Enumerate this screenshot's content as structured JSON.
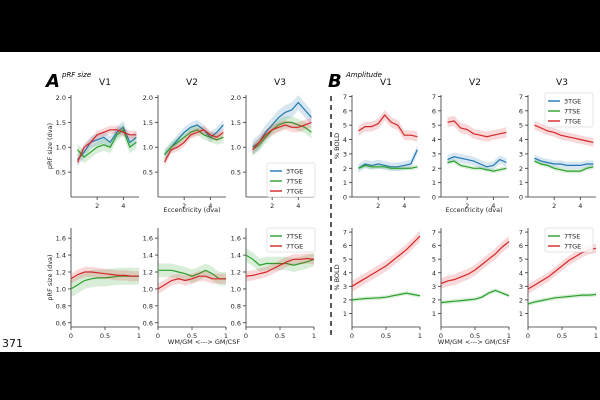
{
  "page": {
    "line_number": "371",
    "panel_a_letter": "A",
    "panel_a_subtitle": "pRF size",
    "panel_b_letter": "B",
    "panel_b_subtitle": "Amplitude"
  },
  "colors": {
    "3TGE": "#1f77b4",
    "7TSE": "#2ca02c",
    "7TGE": "#d62728"
  },
  "chart_data": [
    {
      "id": "A-top",
      "type": "line",
      "title": "pRF size",
      "xlabel": "Eccentricity (dva)",
      "ylabel": "pRF size (dva)",
      "xlim": [
        0,
        5.2
      ],
      "ylim": [
        0,
        2.05
      ],
      "xticks": [
        2,
        4
      ],
      "yticks": [
        0.5,
        1.0,
        1.5,
        2.0
      ],
      "ytick_labels": [
        "0.5",
        "1.0",
        "1.5",
        "2.0"
      ],
      "subplots": [
        {
          "title": "V1",
          "x": [
            0.5,
            1,
            1.5,
            2,
            2.5,
            3,
            3.5,
            4,
            4.5,
            5
          ],
          "series": [
            {
              "name": "3TGE",
              "values": [
                0.75,
                0.9,
                1.1,
                1.15,
                1.2,
                1.1,
                1.3,
                1.4,
                1.1,
                1.2
              ],
              "err": 0.12
            },
            {
              "name": "7TSE",
              "values": [
                0.95,
                0.8,
                0.9,
                1.0,
                1.05,
                1.0,
                1.25,
                1.35,
                1.0,
                1.1
              ],
              "err": 0.12
            },
            {
              "name": "7TGE",
              "values": [
                0.7,
                1.0,
                1.1,
                1.25,
                1.3,
                1.35,
                1.35,
                1.3,
                1.25,
                1.25
              ],
              "err": 0.08
            }
          ]
        },
        {
          "title": "V2",
          "x": [
            0.5,
            1,
            1.5,
            2,
            2.5,
            3,
            3.5,
            4,
            4.5,
            5
          ],
          "series": [
            {
              "name": "3TGE",
              "values": [
                0.85,
                1.0,
                1.15,
                1.3,
                1.4,
                1.45,
                1.35,
                1.2,
                1.3,
                1.45
              ],
              "err": 0.1
            },
            {
              "name": "7TSE",
              "values": [
                0.85,
                1.0,
                1.1,
                1.2,
                1.3,
                1.35,
                1.25,
                1.2,
                1.15,
                1.2
              ],
              "err": 0.1
            },
            {
              "name": "7TGE",
              "values": [
                0.7,
                0.95,
                1.0,
                1.1,
                1.25,
                1.3,
                1.35,
                1.25,
                1.2,
                1.3
              ],
              "err": 0.08
            }
          ]
        },
        {
          "title": "V3",
          "x": [
            0.5,
            1,
            1.5,
            2,
            2.5,
            3,
            3.5,
            4,
            4.5,
            5
          ],
          "series": [
            {
              "name": "3TGE",
              "values": [
                1.0,
                1.1,
                1.3,
                1.45,
                1.6,
                1.7,
                1.75,
                1.9,
                1.75,
                1.6
              ],
              "err": 0.15
            },
            {
              "name": "7TSE",
              "values": [
                0.95,
                1.05,
                1.2,
                1.35,
                1.45,
                1.5,
                1.5,
                1.45,
                1.4,
                1.3
              ],
              "err": 0.12
            },
            {
              "name": "7TGE",
              "values": [
                0.95,
                1.1,
                1.25,
                1.35,
                1.4,
                1.45,
                1.4,
                1.4,
                1.45,
                1.5
              ],
              "err": 0.1
            }
          ]
        }
      ],
      "legend": {
        "entries": [
          "3TGE",
          "7TSE",
          "7TGE"
        ],
        "placement": "bottom-right of V3"
      }
    },
    {
      "id": "A-bottom",
      "type": "line",
      "xlabel": "WM/GM <---> GM/CSF",
      "ylabel": "pRF size (dva)",
      "xlim": [
        0,
        1
      ],
      "ylim": [
        0.55,
        1.72
      ],
      "xticks": [
        0,
        0.5,
        1
      ],
      "xtick_labels": [
        "0",
        "0.5",
        "1"
      ],
      "yticks": [
        0.6,
        0.8,
        1.0,
        1.2,
        1.4,
        1.6
      ],
      "ytick_labels": [
        "0.6",
        "0.8",
        "1.0",
        "1.2",
        "1.4",
        "1.6"
      ],
      "subplots": [
        {
          "title": "V1",
          "x": [
            0,
            0.1,
            0.2,
            0.3,
            0.4,
            0.5,
            0.6,
            0.7,
            0.8,
            0.9,
            1
          ],
          "series": [
            {
              "name": "7TSE",
              "values": [
                1.0,
                1.05,
                1.1,
                1.12,
                1.13,
                1.13,
                1.14,
                1.15,
                1.15,
                1.15,
                1.15
              ],
              "err": 0.1
            },
            {
              "name": "7TGE",
              "values": [
                1.12,
                1.17,
                1.2,
                1.2,
                1.19,
                1.18,
                1.17,
                1.16,
                1.16,
                1.15,
                1.15
              ],
              "err": 0.06
            }
          ]
        },
        {
          "title": "V2",
          "x": [
            0,
            0.1,
            0.2,
            0.3,
            0.4,
            0.5,
            0.6,
            0.7,
            0.8,
            0.9,
            1
          ],
          "series": [
            {
              "name": "7TSE",
              "values": [
                1.22,
                1.22,
                1.22,
                1.2,
                1.18,
                1.15,
                1.18,
                1.22,
                1.18,
                1.12,
                1.12
              ],
              "err": 0.08
            },
            {
              "name": "7TGE",
              "values": [
                1.0,
                1.05,
                1.1,
                1.12,
                1.1,
                1.12,
                1.15,
                1.15,
                1.12,
                1.12,
                1.12
              ],
              "err": 0.06
            }
          ]
        },
        {
          "title": "V3",
          "x": [
            0,
            0.1,
            0.2,
            0.3,
            0.4,
            0.5,
            0.6,
            0.7,
            0.8,
            0.9,
            1
          ],
          "series": [
            {
              "name": "7TSE",
              "values": [
                1.4,
                1.35,
                1.28,
                1.3,
                1.3,
                1.3,
                1.3,
                1.28,
                1.3,
                1.32,
                1.35
              ],
              "err": 0.08
            },
            {
              "name": "7TGE",
              "values": [
                1.15,
                1.16,
                1.18,
                1.2,
                1.24,
                1.28,
                1.32,
                1.35,
                1.35,
                1.36,
                1.35
              ],
              "err": 0.06
            }
          ]
        }
      ],
      "legend": {
        "entries": [
          "7TSE",
          "7TGE"
        ],
        "placement": "top-right of V3"
      }
    },
    {
      "id": "B-top",
      "type": "line",
      "title": "Amplitude",
      "xlabel": "Eccentricity (dva)",
      "ylabel": "% BOLD",
      "xlim": [
        0,
        5.2
      ],
      "ylim": [
        0,
        7.1
      ],
      "xticks": [
        2,
        4
      ],
      "yticks": [
        0,
        1,
        2,
        3,
        4,
        5,
        6,
        7
      ],
      "ytick_labels": [
        "0",
        "1",
        "2",
        "3",
        "4",
        "5",
        "6",
        "7"
      ],
      "subplots": [
        {
          "title": "V1",
          "x": [
            0.5,
            1,
            1.5,
            2,
            2.5,
            3,
            3.5,
            4,
            4.5,
            5
          ],
          "series": [
            {
              "name": "3TGE",
              "values": [
                2.0,
                2.3,
                2.2,
                2.3,
                2.2,
                2.1,
                2.1,
                2.2,
                2.3,
                3.3
              ],
              "err": 0.3
            },
            {
              "name": "7TSE",
              "values": [
                2.0,
                2.2,
                2.1,
                2.1,
                2.1,
                2.0,
                2.0,
                2.0,
                2.0,
                2.1
              ],
              "err": 0.15
            },
            {
              "name": "7TGE",
              "values": [
                4.6,
                4.9,
                4.9,
                5.1,
                5.7,
                5.2,
                5.0,
                4.3,
                4.3,
                4.2
              ],
              "err": 0.35
            }
          ]
        },
        {
          "title": "V2",
          "x": [
            0.5,
            1,
            1.5,
            2,
            2.5,
            3,
            3.5,
            4,
            4.5,
            5
          ],
          "series": [
            {
              "name": "3TGE",
              "values": [
                2.6,
                2.8,
                2.7,
                2.6,
                2.5,
                2.3,
                2.1,
                2.2,
                2.6,
                2.4
              ],
              "err": 0.3
            },
            {
              "name": "7TSE",
              "values": [
                2.4,
                2.5,
                2.2,
                2.1,
                2.0,
                2.0,
                1.9,
                1.8,
                1.9,
                2.0
              ],
              "err": 0.15
            },
            {
              "name": "7TGE",
              "values": [
                5.2,
                5.3,
                4.8,
                4.7,
                4.4,
                4.3,
                4.2,
                4.3,
                4.4,
                4.5
              ],
              "err": 0.35
            }
          ]
        },
        {
          "title": "V3",
          "x": [
            0.5,
            1,
            1.5,
            2,
            2.5,
            3,
            3.5,
            4,
            4.5,
            5
          ],
          "series": [
            {
              "name": "3TGE",
              "values": [
                2.7,
                2.5,
                2.4,
                2.3,
                2.3,
                2.2,
                2.2,
                2.2,
                2.3,
                2.3
              ],
              "err": 0.25
            },
            {
              "name": "7TSE",
              "values": [
                2.5,
                2.3,
                2.2,
                2.0,
                1.9,
                1.8,
                1.8,
                1.8,
                2.0,
                2.1
              ],
              "err": 0.15
            },
            {
              "name": "7TGE",
              "values": [
                5.0,
                4.8,
                4.6,
                4.5,
                4.3,
                4.2,
                4.1,
                4.0,
                3.9,
                3.8
              ],
              "err": 0.3
            }
          ]
        }
      ],
      "legend": {
        "entries": [
          "3TGE",
          "7TSE",
          "7TGE"
        ],
        "placement": "top-right of V3"
      }
    },
    {
      "id": "B-bottom",
      "type": "line",
      "xlabel": "WM/GM <---> GM/CSF",
      "ylabel": "% BOLD",
      "xlim": [
        0,
        1
      ],
      "ylim": [
        0,
        7.3
      ],
      "xticks": [
        0,
        0.5,
        1
      ],
      "xtick_labels": [
        "0",
        "0.5",
        "1"
      ],
      "yticks": [
        1,
        2,
        3,
        4,
        5,
        6,
        7
      ],
      "ytick_labels": [
        "1",
        "2",
        "3",
        "4",
        "5",
        "6",
        "7"
      ],
      "subplots": [
        {
          "title": "V1",
          "x": [
            0,
            0.1,
            0.2,
            0.3,
            0.4,
            0.5,
            0.6,
            0.7,
            0.8,
            0.9,
            1
          ],
          "series": [
            {
              "name": "7TSE",
              "values": [
                2.0,
                2.05,
                2.1,
                2.12,
                2.15,
                2.2,
                2.3,
                2.4,
                2.5,
                2.4,
                2.3
              ],
              "err": 0.15
            },
            {
              "name": "7TGE",
              "values": [
                3.0,
                3.3,
                3.6,
                3.9,
                4.2,
                4.5,
                4.9,
                5.3,
                5.7,
                6.2,
                6.7
              ],
              "err": 0.4
            }
          ]
        },
        {
          "title": "V2",
          "x": [
            0,
            0.1,
            0.2,
            0.3,
            0.4,
            0.5,
            0.6,
            0.7,
            0.8,
            0.9,
            1
          ],
          "series": [
            {
              "name": "7TSE",
              "values": [
                1.8,
                1.85,
                1.9,
                1.95,
                2.0,
                2.05,
                2.2,
                2.5,
                2.7,
                2.5,
                2.3
              ],
              "err": 0.15
            },
            {
              "name": "7TGE",
              "values": [
                3.2,
                3.4,
                3.5,
                3.7,
                3.9,
                4.2,
                4.6,
                5.0,
                5.4,
                5.9,
                6.3
              ],
              "err": 0.4
            }
          ]
        },
        {
          "title": "V3",
          "x": [
            0,
            0.1,
            0.2,
            0.3,
            0.4,
            0.5,
            0.6,
            0.7,
            0.8,
            0.9,
            1
          ],
          "series": [
            {
              "name": "7TSE",
              "values": [
                1.7,
                1.85,
                1.95,
                2.05,
                2.15,
                2.2,
                2.25,
                2.3,
                2.35,
                2.35,
                2.4
              ],
              "err": 0.15
            },
            {
              "name": "7TGE",
              "values": [
                2.8,
                3.1,
                3.4,
                3.7,
                4.1,
                4.5,
                4.9,
                5.2,
                5.5,
                5.7,
                5.8
              ],
              "err": 0.35
            }
          ]
        }
      ],
      "legend": {
        "entries": [
          "7TSE",
          "7TGE"
        ],
        "placement": "top-right of V3"
      }
    }
  ]
}
